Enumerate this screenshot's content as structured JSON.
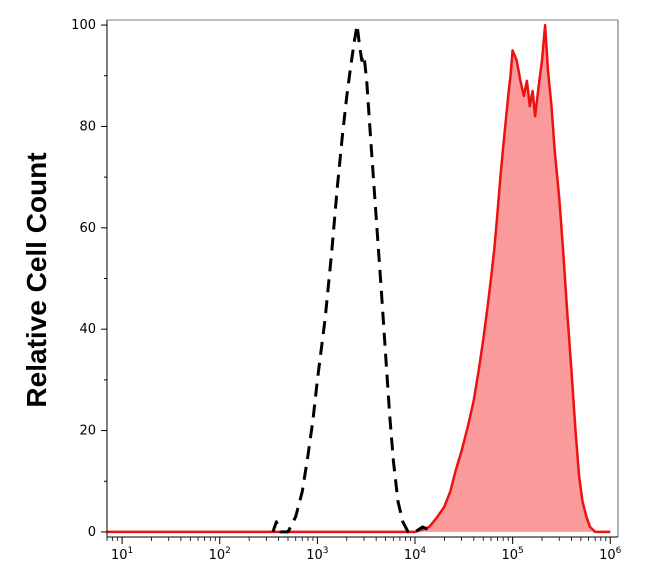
{
  "chart_data": {
    "type": "area",
    "title": "",
    "xlabel": "",
    "ylabel": "Relative Cell Count",
    "x_scale": "log",
    "xlim": [
      7,
      1200000
    ],
    "ylim": [
      -1,
      101
    ],
    "yticks": [
      0,
      20,
      40,
      60,
      80,
      100
    ],
    "xticks": [
      {
        "base": "10",
        "exp": "1",
        "value": 10
      },
      {
        "base": "10",
        "exp": "2",
        "value": 100
      },
      {
        "base": "10",
        "exp": "3",
        "value": 1000
      },
      {
        "base": "10",
        "exp": "4",
        "value": 10000
      },
      {
        "base": "10",
        "exp": "5",
        "value": 100000
      },
      {
        "base": "10",
        "exp": "6",
        "value": 1000000
      }
    ],
    "grid": false,
    "series": [
      {
        "style": "dashed",
        "color": "#000000",
        "fill": "none",
        "points": [
          [
            350,
            0
          ],
          [
            380,
            2
          ],
          [
            420,
            0
          ],
          [
            500,
            0
          ],
          [
            600,
            3
          ],
          [
            700,
            8
          ],
          [
            800,
            15
          ],
          [
            900,
            22
          ],
          [
            1000,
            30
          ],
          [
            1200,
            42
          ],
          [
            1400,
            55
          ],
          [
            1600,
            68
          ],
          [
            1800,
            78
          ],
          [
            2000,
            86
          ],
          [
            2200,
            92
          ],
          [
            2400,
            97
          ],
          [
            2550,
            100
          ],
          [
            2700,
            96
          ],
          [
            2850,
            93
          ],
          [
            3000,
            94
          ],
          [
            3200,
            89
          ],
          [
            3500,
            78
          ],
          [
            4000,
            62
          ],
          [
            4500,
            48
          ],
          [
            5000,
            35
          ],
          [
            5500,
            23
          ],
          [
            6000,
            14
          ],
          [
            6700,
            6
          ],
          [
            7500,
            2
          ],
          [
            8500,
            0
          ],
          [
            10000,
            0
          ],
          [
            12000,
            1
          ],
          [
            15000,
            0
          ]
        ]
      },
      {
        "style": "solid",
        "color": "#ee1111",
        "fill": "#fa9a9a",
        "points": [
          [
            7,
            0
          ],
          [
            10000,
            0
          ],
          [
            14000,
            1
          ],
          [
            17000,
            3
          ],
          [
            20000,
            5
          ],
          [
            23000,
            8
          ],
          [
            26000,
            12
          ],
          [
            30000,
            16
          ],
          [
            35000,
            21
          ],
          [
            40000,
            26
          ],
          [
            45000,
            32
          ],
          [
            50000,
            38
          ],
          [
            55000,
            44
          ],
          [
            60000,
            50
          ],
          [
            65000,
            56
          ],
          [
            70000,
            63
          ],
          [
            75000,
            70
          ],
          [
            80000,
            76
          ],
          [
            85000,
            81
          ],
          [
            90000,
            86
          ],
          [
            95000,
            90
          ],
          [
            100000,
            95
          ],
          [
            110000,
            93
          ],
          [
            120000,
            89
          ],
          [
            130000,
            86
          ],
          [
            140000,
            89
          ],
          [
            150000,
            84
          ],
          [
            160000,
            87
          ],
          [
            170000,
            82
          ],
          [
            185000,
            88
          ],
          [
            200000,
            93
          ],
          [
            215000,
            100
          ],
          [
            230000,
            91
          ],
          [
            250000,
            84
          ],
          [
            270000,
            75
          ],
          [
            300000,
            66
          ],
          [
            330000,
            55
          ],
          [
            360000,
            44
          ],
          [
            400000,
            32
          ],
          [
            440000,
            20
          ],
          [
            480000,
            11
          ],
          [
            520000,
            6
          ],
          [
            570000,
            3
          ],
          [
            620000,
            1
          ],
          [
            700000,
            0
          ],
          [
            1000000,
            0
          ]
        ]
      }
    ]
  }
}
